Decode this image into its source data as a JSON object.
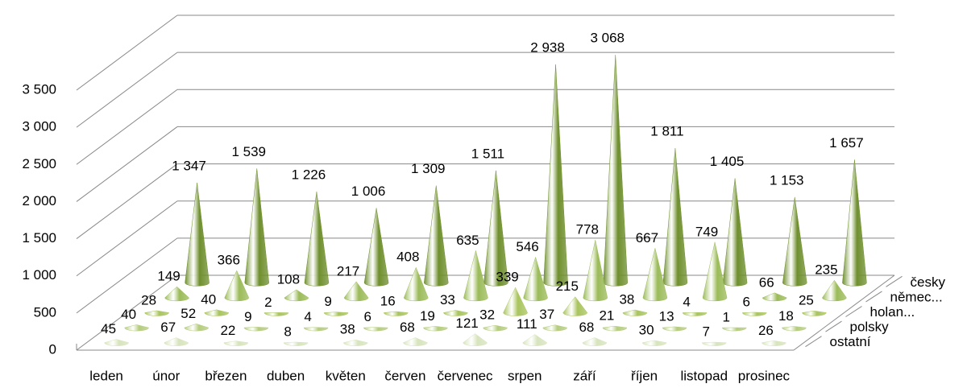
{
  "chart_data": {
    "type": "cone3d",
    "categories": [
      "leden",
      "únor",
      "březen",
      "duben",
      "květen",
      "červen",
      "červenec",
      "srpen",
      "září",
      "říjen",
      "listopad",
      "prosinec"
    ],
    "series": [
      {
        "name": "ostatní",
        "color": "#d7e4bd",
        "values": [
          45,
          67,
          22,
          8,
          38,
          68,
          121,
          111,
          68,
          30,
          7,
          26
        ]
      },
      {
        "name": "polsky",
        "color": "#b5cc7e",
        "values": [
          40,
          52,
          9,
          4,
          6,
          19,
          32,
          37,
          21,
          13,
          1,
          18
        ]
      },
      {
        "name": "holan...",
        "color": "#a9c45e",
        "values": [
          28,
          40,
          2,
          9,
          16,
          33,
          339,
          215,
          38,
          4,
          6,
          25
        ]
      },
      {
        "name": "němec...",
        "color": "#9bbb59",
        "values": [
          149,
          366,
          108,
          217,
          408,
          635,
          546,
          778,
          667,
          749,
          66,
          235
        ]
      },
      {
        "name": "česky",
        "color": "#6f8f2e",
        "values": [
          1347,
          1539,
          1226,
          1006,
          1309,
          1511,
          2938,
          3068,
          1811,
          1405,
          1153,
          1657
        ],
        "value_labels": [
          "1 347",
          "1 539",
          "1 226",
          "1 006",
          "1 309",
          "1 511",
          "2 938",
          "3 068",
          "1 811",
          "1 405",
          "1 153",
          "1 657"
        ]
      }
    ],
    "ylim": [
      0,
      3500
    ],
    "yticks": [
      0,
      500,
      {
        "value": 1000,
        "label": "1 000"
      },
      {
        "value": 1500,
        "label": "1 500"
      },
      {
        "value": 2000,
        "label": "2 000"
      },
      {
        "value": 2500,
        "label": "2 500"
      },
      {
        "value": 3000,
        "label": "3 000"
      },
      {
        "value": 3500,
        "label": "3 500"
      }
    ],
    "grid": true
  }
}
